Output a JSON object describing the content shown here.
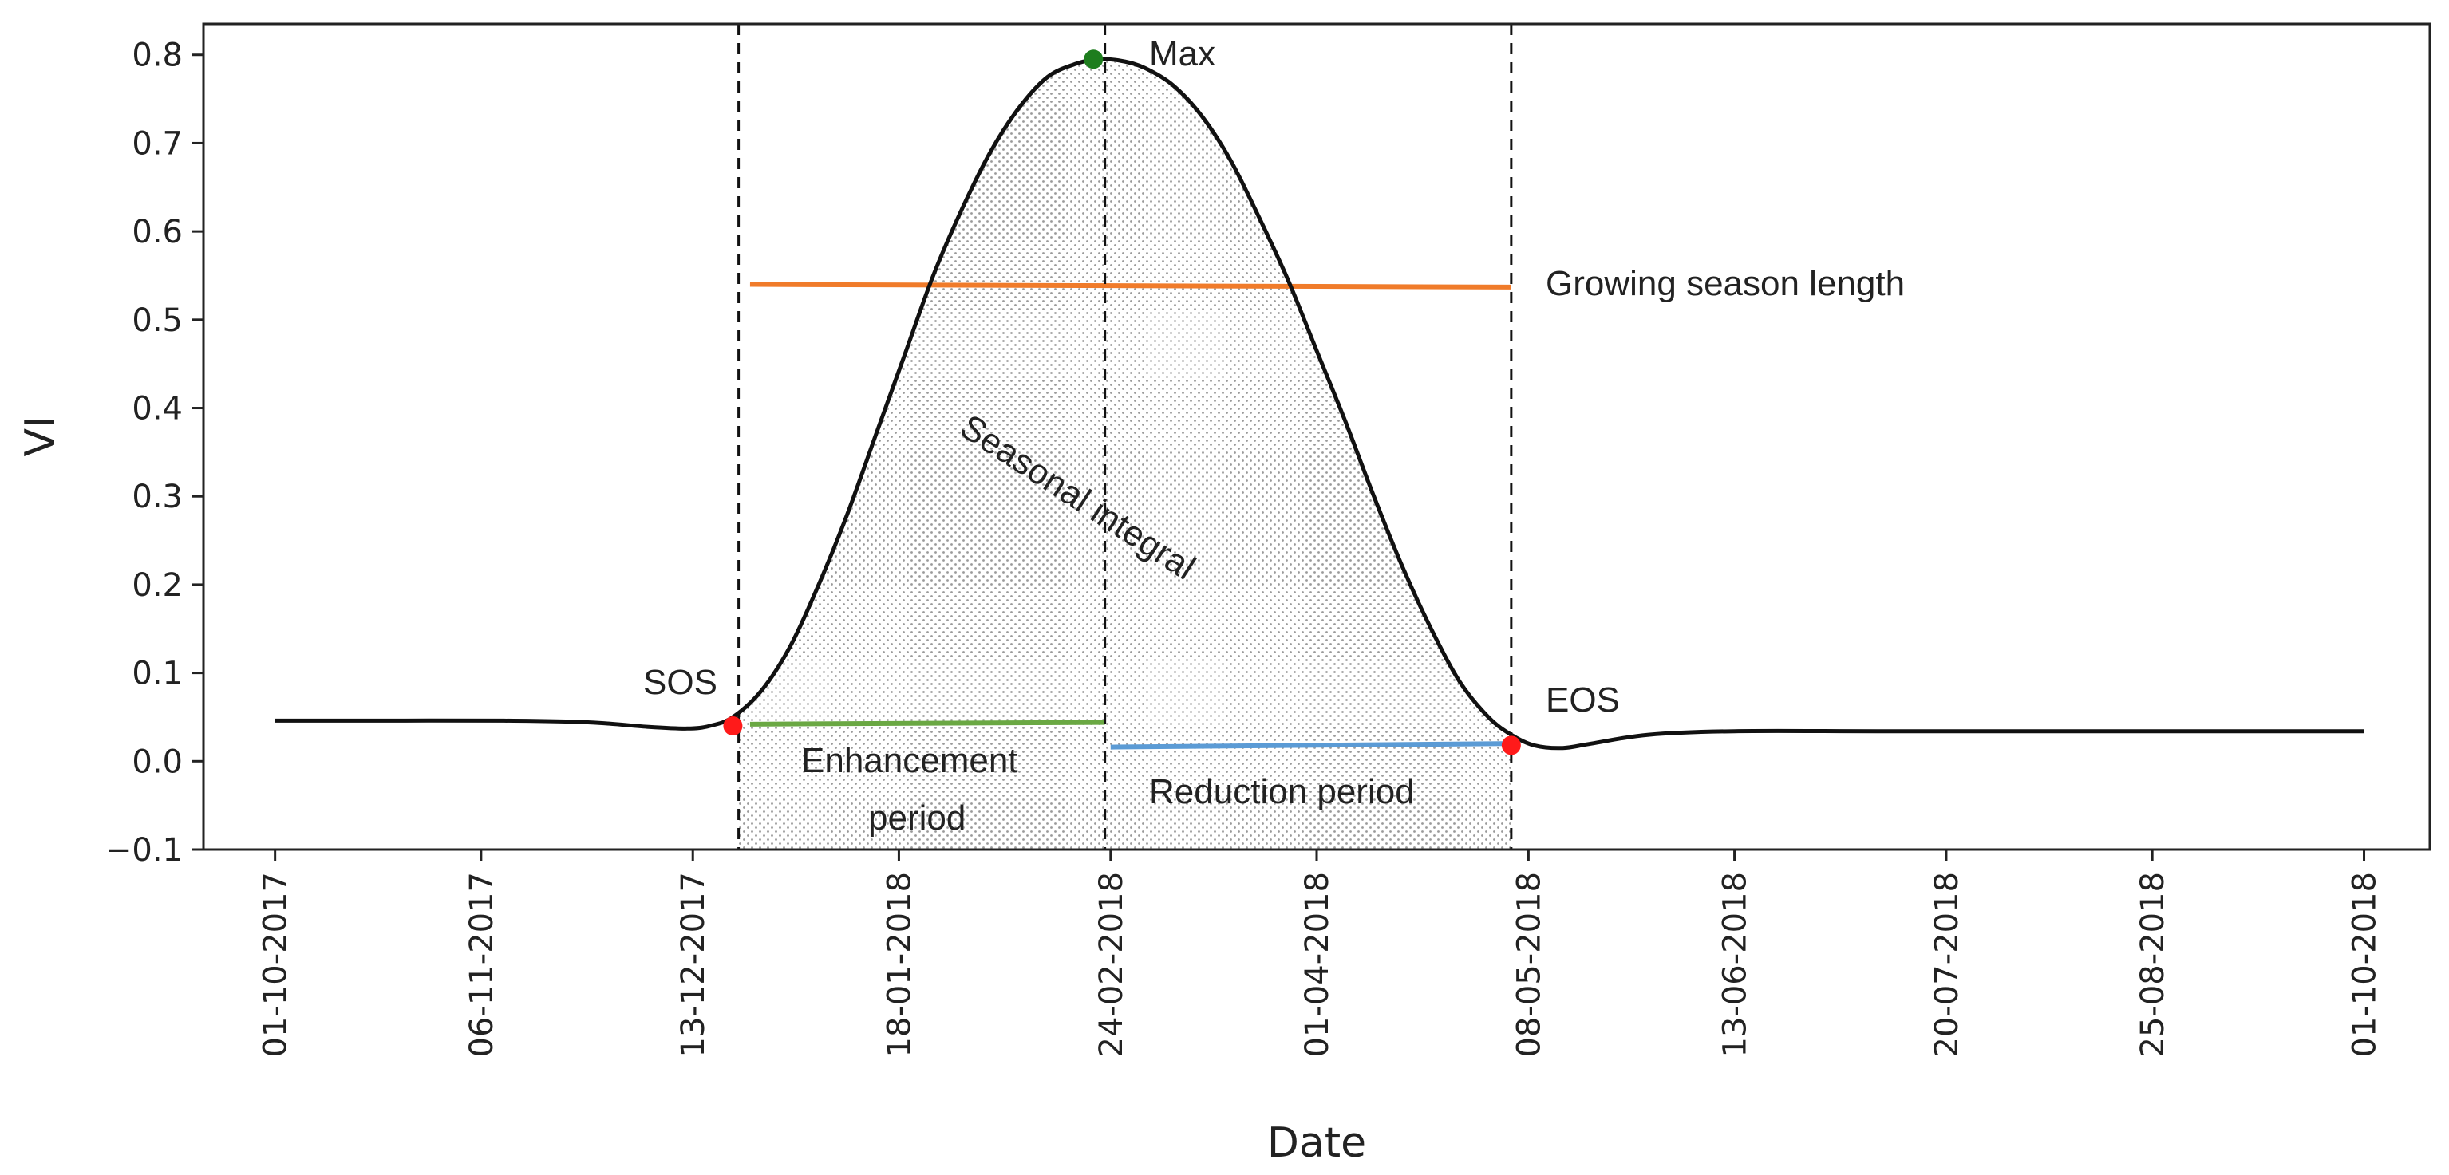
{
  "chart_data": {
    "type": "line",
    "title": "",
    "xlabel": "Date",
    "ylabel": "VI",
    "ylim": [
      -0.1,
      0.835
    ],
    "xlim_days": [
      -12.5,
      376.5
    ],
    "y_ticks": [
      -0.1,
      0.0,
      0.1,
      0.2,
      0.3,
      0.4,
      0.5,
      0.6,
      0.7,
      0.8
    ],
    "y_tick_labels": [
      "−0.1",
      "0.0",
      "0.1",
      "0.2",
      "0.3",
      "0.4",
      "0.5",
      "0.6",
      "0.7",
      "0.8"
    ],
    "x_ticks": [
      {
        "day": 0,
        "label": "01-10-2017"
      },
      {
        "day": 36,
        "label": "06-11-2017"
      },
      {
        "day": 73,
        "label": "13-12-2017"
      },
      {
        "day": 109,
        "label": "18-01-2018"
      },
      {
        "day": 146,
        "label": "24-02-2018"
      },
      {
        "day": 182,
        "label": "01-04-2018"
      },
      {
        "day": 219,
        "label": "08-05-2018"
      },
      {
        "day": 255,
        "label": "13-06-2018"
      },
      {
        "day": 292,
        "label": "20-07-2018"
      },
      {
        "day": 328,
        "label": "25-08-2018"
      },
      {
        "day": 365,
        "label": "01-10-2018"
      }
    ],
    "series": [
      {
        "name": "VI",
        "color": "#111111",
        "x": [
          0,
          20,
          40,
          55,
          65,
          72,
          76,
          80,
          85,
          90,
          95,
          100,
          105,
          110,
          115,
          120,
          125,
          130,
          135,
          140,
          144,
          148,
          152,
          157,
          162,
          167,
          172,
          177,
          182,
          187,
          192,
          197,
          202,
          207,
          212,
          216,
          220,
          225,
          230,
          240,
          255,
          280,
          320,
          365
        ],
        "y": [
          0.046,
          0.046,
          0.046,
          0.044,
          0.039,
          0.037,
          0.04,
          0.05,
          0.08,
          0.13,
          0.2,
          0.28,
          0.37,
          0.46,
          0.55,
          0.625,
          0.69,
          0.74,
          0.775,
          0.79,
          0.795,
          0.793,
          0.785,
          0.765,
          0.73,
          0.68,
          0.615,
          0.545,
          0.465,
          0.385,
          0.3,
          0.22,
          0.15,
          0.09,
          0.05,
          0.03,
          0.018,
          0.015,
          0.02,
          0.03,
          0.034,
          0.034,
          0.034,
          0.034
        ]
      }
    ],
    "vertical_lines": [
      {
        "name": "sos-line",
        "day": 81
      },
      {
        "name": "max-line",
        "day": 145
      },
      {
        "name": "eos-line",
        "day": 216
      }
    ],
    "segments": [
      {
        "name": "growing-season-length",
        "color": "#f07b2a",
        "x": [
          83,
          216
        ],
        "y": [
          0.54,
          0.537
        ]
      },
      {
        "name": "enhancement-period",
        "color": "#6aa843",
        "x": [
          83,
          145
        ],
        "y": [
          0.042,
          0.044
        ]
      },
      {
        "name": "reduction-period",
        "color": "#5b9bd5",
        "x": [
          146,
          216
        ],
        "y": [
          0.016,
          0.02
        ]
      }
    ],
    "points": [
      {
        "name": "sos-point",
        "label": "SOS",
        "color": "#ff1a1a",
        "x": 80,
        "y": 0.04
      },
      {
        "name": "max-point",
        "label": "Max",
        "color": "#1e7d1e",
        "x": 143,
        "y": 0.795
      },
      {
        "name": "eos-point",
        "label": "EOS",
        "color": "#ff1a1a",
        "x": 216,
        "y": 0.018
      }
    ],
    "shaded_region": {
      "name": "seasonal-integral",
      "x_from": 81,
      "x_to": 216
    },
    "annotations": [
      {
        "name": "label-max",
        "text": "Max"
      },
      {
        "name": "label-sos",
        "text": "SOS"
      },
      {
        "name": "label-eos",
        "text": "EOS"
      },
      {
        "name": "label-growing-season-length",
        "text": "Growing season length"
      },
      {
        "name": "label-seasonal-integral",
        "text": "Seasonal integral"
      },
      {
        "name": "label-enhancement",
        "text": "Enhancement"
      },
      {
        "name": "label-enhancement-period",
        "text": "period"
      },
      {
        "name": "label-reduction-period",
        "text": "Reduction period"
      }
    ]
  }
}
